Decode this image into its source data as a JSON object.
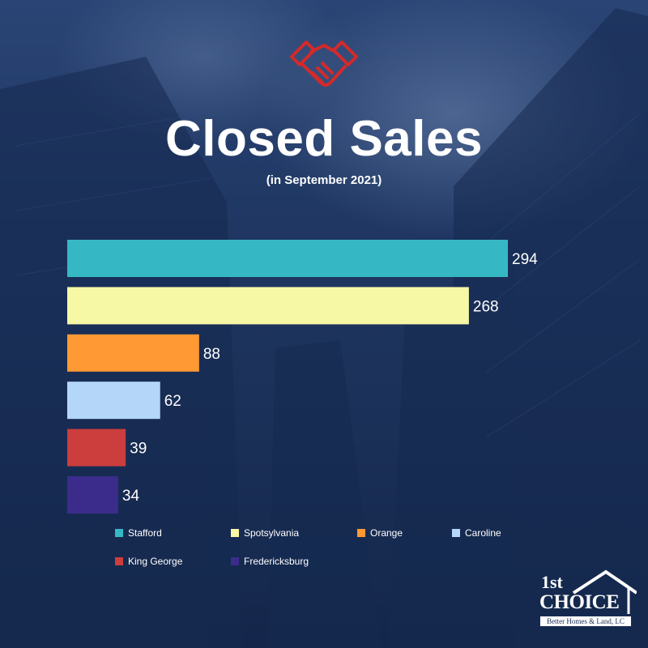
{
  "header": {
    "title": "Closed Sales",
    "subtitle": "(in September 2021)",
    "icon": "handshake-icon",
    "icon_color": "#d42a2a"
  },
  "chart_data": {
    "type": "bar",
    "orientation": "horizontal",
    "title": "Closed Sales",
    "subtitle": "(in September 2021)",
    "categories": [
      "Stafford",
      "Spotsylvania",
      "Orange",
      "Caroline",
      "King George",
      "Fredericksburg"
    ],
    "values": [
      294,
      268,
      88,
      62,
      39,
      34
    ],
    "colors": [
      "#36b8c4",
      "#f6f8a6",
      "#ff9933",
      "#b4d6f8",
      "#cc3d3d",
      "#3b2c8c"
    ],
    "value_labels": [
      "294",
      "268",
      "88",
      "62",
      "39",
      "34"
    ],
    "xlim": [
      0,
      294
    ],
    "grid": false,
    "legend": "bottom",
    "xlabel": "",
    "ylabel": ""
  },
  "logo": {
    "line1": "1st",
    "line2": "CHOICE",
    "tagline": "Better Homes & Land, LC"
  }
}
